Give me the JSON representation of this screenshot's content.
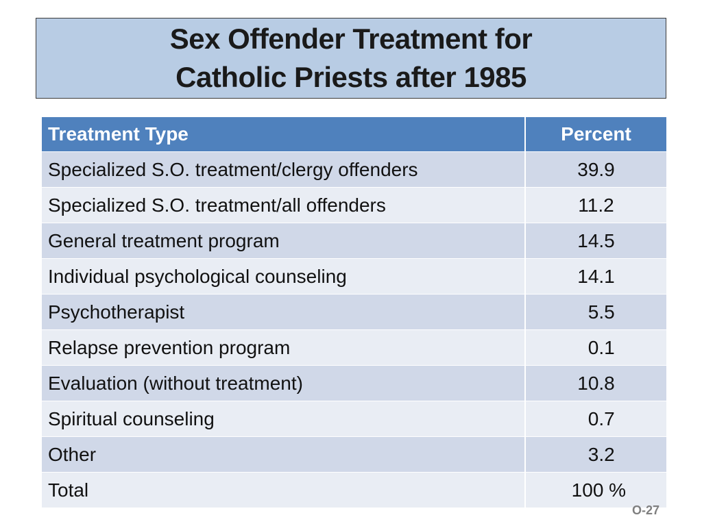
{
  "title": {
    "line1": "Sex Offender Treatment for",
    "line2": "Catholic Priests after 1985"
  },
  "table": {
    "headers": {
      "type": "Treatment Type",
      "percent": "Percent"
    },
    "rows": [
      {
        "type": "Specialized S.O. treatment/clergy offenders",
        "percent": "39.9"
      },
      {
        "type": "Specialized S.O. treatment/all offenders",
        "percent": "11.2"
      },
      {
        "type": "General treatment program",
        "percent": "14.5"
      },
      {
        "type": "Individual psychological counseling",
        "percent": "14.1"
      },
      {
        "type": "Psychotherapist",
        "percent": "  5.5"
      },
      {
        "type": "Relapse prevention program",
        "percent": "  0.1"
      },
      {
        "type": "Evaluation  (without treatment)",
        "percent": "10.8"
      },
      {
        "type": "Spiritual counseling",
        "percent": "  0.7"
      },
      {
        "type": "Other",
        "percent": "  3.2"
      },
      {
        "type": "Total",
        "percent": " 100 %"
      }
    ]
  },
  "footer": {
    "code": "O-27"
  },
  "colors": {
    "title_bg": "#b8cce4",
    "header_bg": "#4f81bd",
    "row_odd": "#d0d8e8",
    "row_even": "#e9edf4"
  }
}
